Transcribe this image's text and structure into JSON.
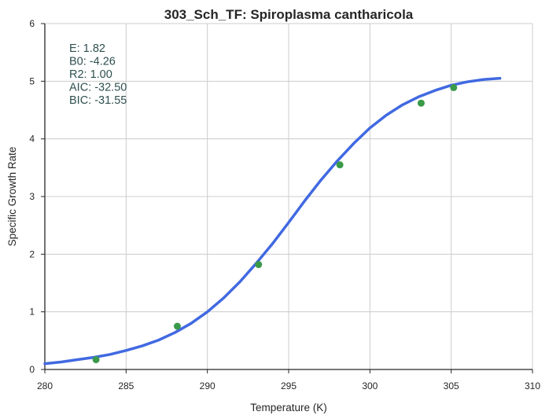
{
  "chart_data": {
    "type": "scatter",
    "title": "303_Sch_TF: Spiroplasma cantharicola",
    "xlabel": "Temperature (K)",
    "ylabel": "Specific Growth Rate",
    "xlim": [
      280,
      310
    ],
    "ylim": [
      0,
      6
    ],
    "xticks": [
      "280",
      "285",
      "290",
      "295",
      "300",
      "305",
      "310"
    ],
    "yticks": [
      "0",
      "1",
      "2",
      "3",
      "4",
      "5",
      "6"
    ],
    "grid": true,
    "points": [
      {
        "x": 283.15,
        "y": 0.17
      },
      {
        "x": 288.15,
        "y": 0.75
      },
      {
        "x": 293.15,
        "y": 1.82
      },
      {
        "x": 298.15,
        "y": 3.55
      },
      {
        "x": 303.15,
        "y": 4.62
      },
      {
        "x": 305.15,
        "y": 4.89
      }
    ],
    "fit_curve": {
      "x": [
        280,
        281,
        282,
        283,
        284,
        285,
        286,
        287,
        288,
        289,
        290,
        291,
        292,
        293,
        294,
        295,
        296,
        297,
        298,
        299,
        300,
        301,
        302,
        303,
        304,
        305,
        306,
        307,
        308
      ],
      "y": [
        0.1,
        0.13,
        0.17,
        0.21,
        0.26,
        0.33,
        0.41,
        0.51,
        0.64,
        0.8,
        1.0,
        1.24,
        1.52,
        1.84,
        2.18,
        2.55,
        2.93,
        3.29,
        3.62,
        3.92,
        4.19,
        4.41,
        4.59,
        4.73,
        4.84,
        4.93,
        4.99,
        5.03,
        5.05
      ]
    },
    "colors": {
      "fit": "#4169e1",
      "points": "#3a9a4a",
      "grid": "#cccccc",
      "axis": "#262626",
      "stats_text": "#2f4f4f"
    },
    "stats": [
      "E:  1.82",
      "B0:  -4.26",
      "R2:  1.00",
      "AIC: -32.50",
      "BIC: -31.55"
    ]
  }
}
